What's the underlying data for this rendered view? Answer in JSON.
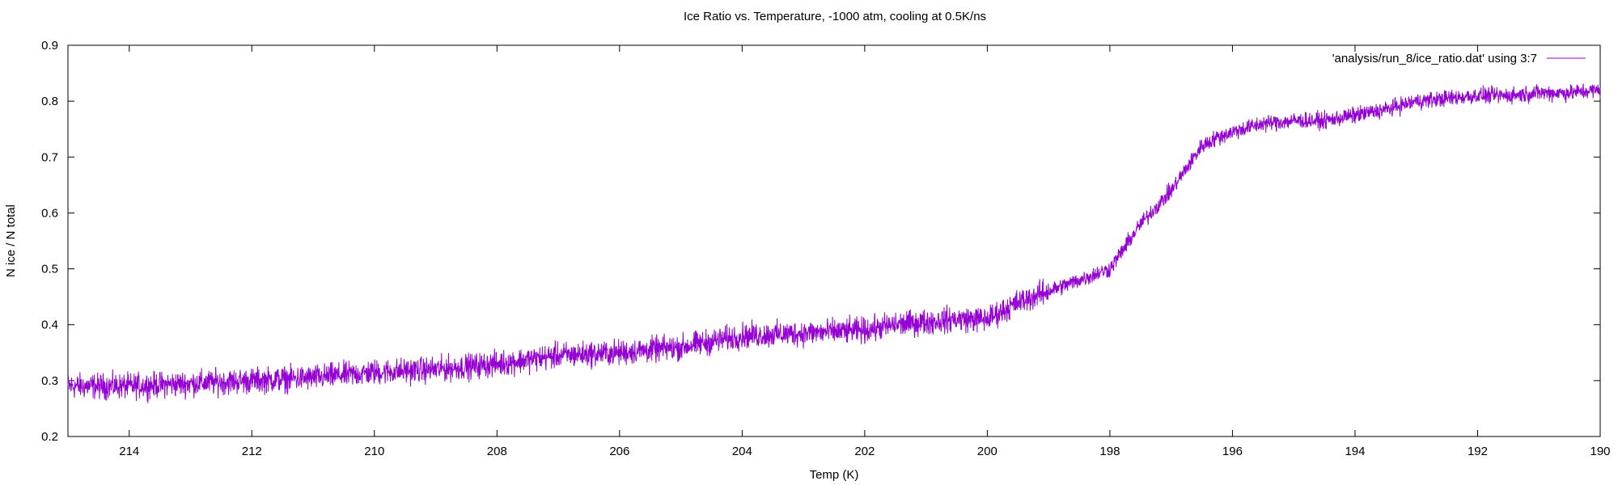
{
  "chart_data": {
    "type": "line",
    "title": "Ice Ratio vs. Temperature, -1000 atm, cooling at 0.5K/ns",
    "xlabel": "Temp (K)",
    "ylabel": "N ice / N total",
    "xlim": [
      215,
      190
    ],
    "ylim": [
      0.2,
      0.9
    ],
    "x_reversed": true,
    "x_ticks": [
      214,
      212,
      210,
      208,
      206,
      204,
      202,
      200,
      198,
      196,
      194,
      192,
      190
    ],
    "x_tick_labels": [
      "214",
      "212",
      "210",
      "208",
      "206",
      "204",
      "202",
      "200",
      "198",
      "196",
      "194",
      "192",
      "190"
    ],
    "y_ticks": [
      0.2,
      0.3,
      0.4,
      0.5,
      0.6,
      0.7,
      0.8,
      0.9
    ],
    "y_tick_labels": [
      "0.2",
      "0.3",
      "0.4",
      "0.5",
      "0.6",
      "0.7",
      "0.8",
      "0.9"
    ],
    "grid": false,
    "legend_position": "top-right",
    "series": [
      {
        "name": "'analysis/run_8/ice_ratio.dat' using 3:7",
        "color": "#9400d3",
        "x": [
          215,
          214,
          213,
          212,
          211,
          210,
          209,
          208,
          207,
          206,
          205,
          204,
          203,
          202,
          201.5,
          201,
          200.5,
          200,
          199.5,
          199,
          198.5,
          198,
          197.75,
          197.5,
          197.25,
          197,
          196.75,
          196.5,
          196.25,
          196,
          195.5,
          195,
          194.5,
          194,
          193.5,
          193,
          192.5,
          192,
          191.5,
          191,
          190.5,
          190
        ],
        "values": [
          0.29,
          0.29,
          0.295,
          0.3,
          0.305,
          0.315,
          0.32,
          0.33,
          0.345,
          0.35,
          0.36,
          0.38,
          0.385,
          0.39,
          0.4,
          0.405,
          0.41,
          0.41,
          0.44,
          0.46,
          0.48,
          0.5,
          0.54,
          0.58,
          0.61,
          0.64,
          0.68,
          0.72,
          0.735,
          0.745,
          0.76,
          0.765,
          0.765,
          0.775,
          0.785,
          0.8,
          0.805,
          0.81,
          0.81,
          0.815,
          0.815,
          0.82
        ]
      }
    ]
  }
}
